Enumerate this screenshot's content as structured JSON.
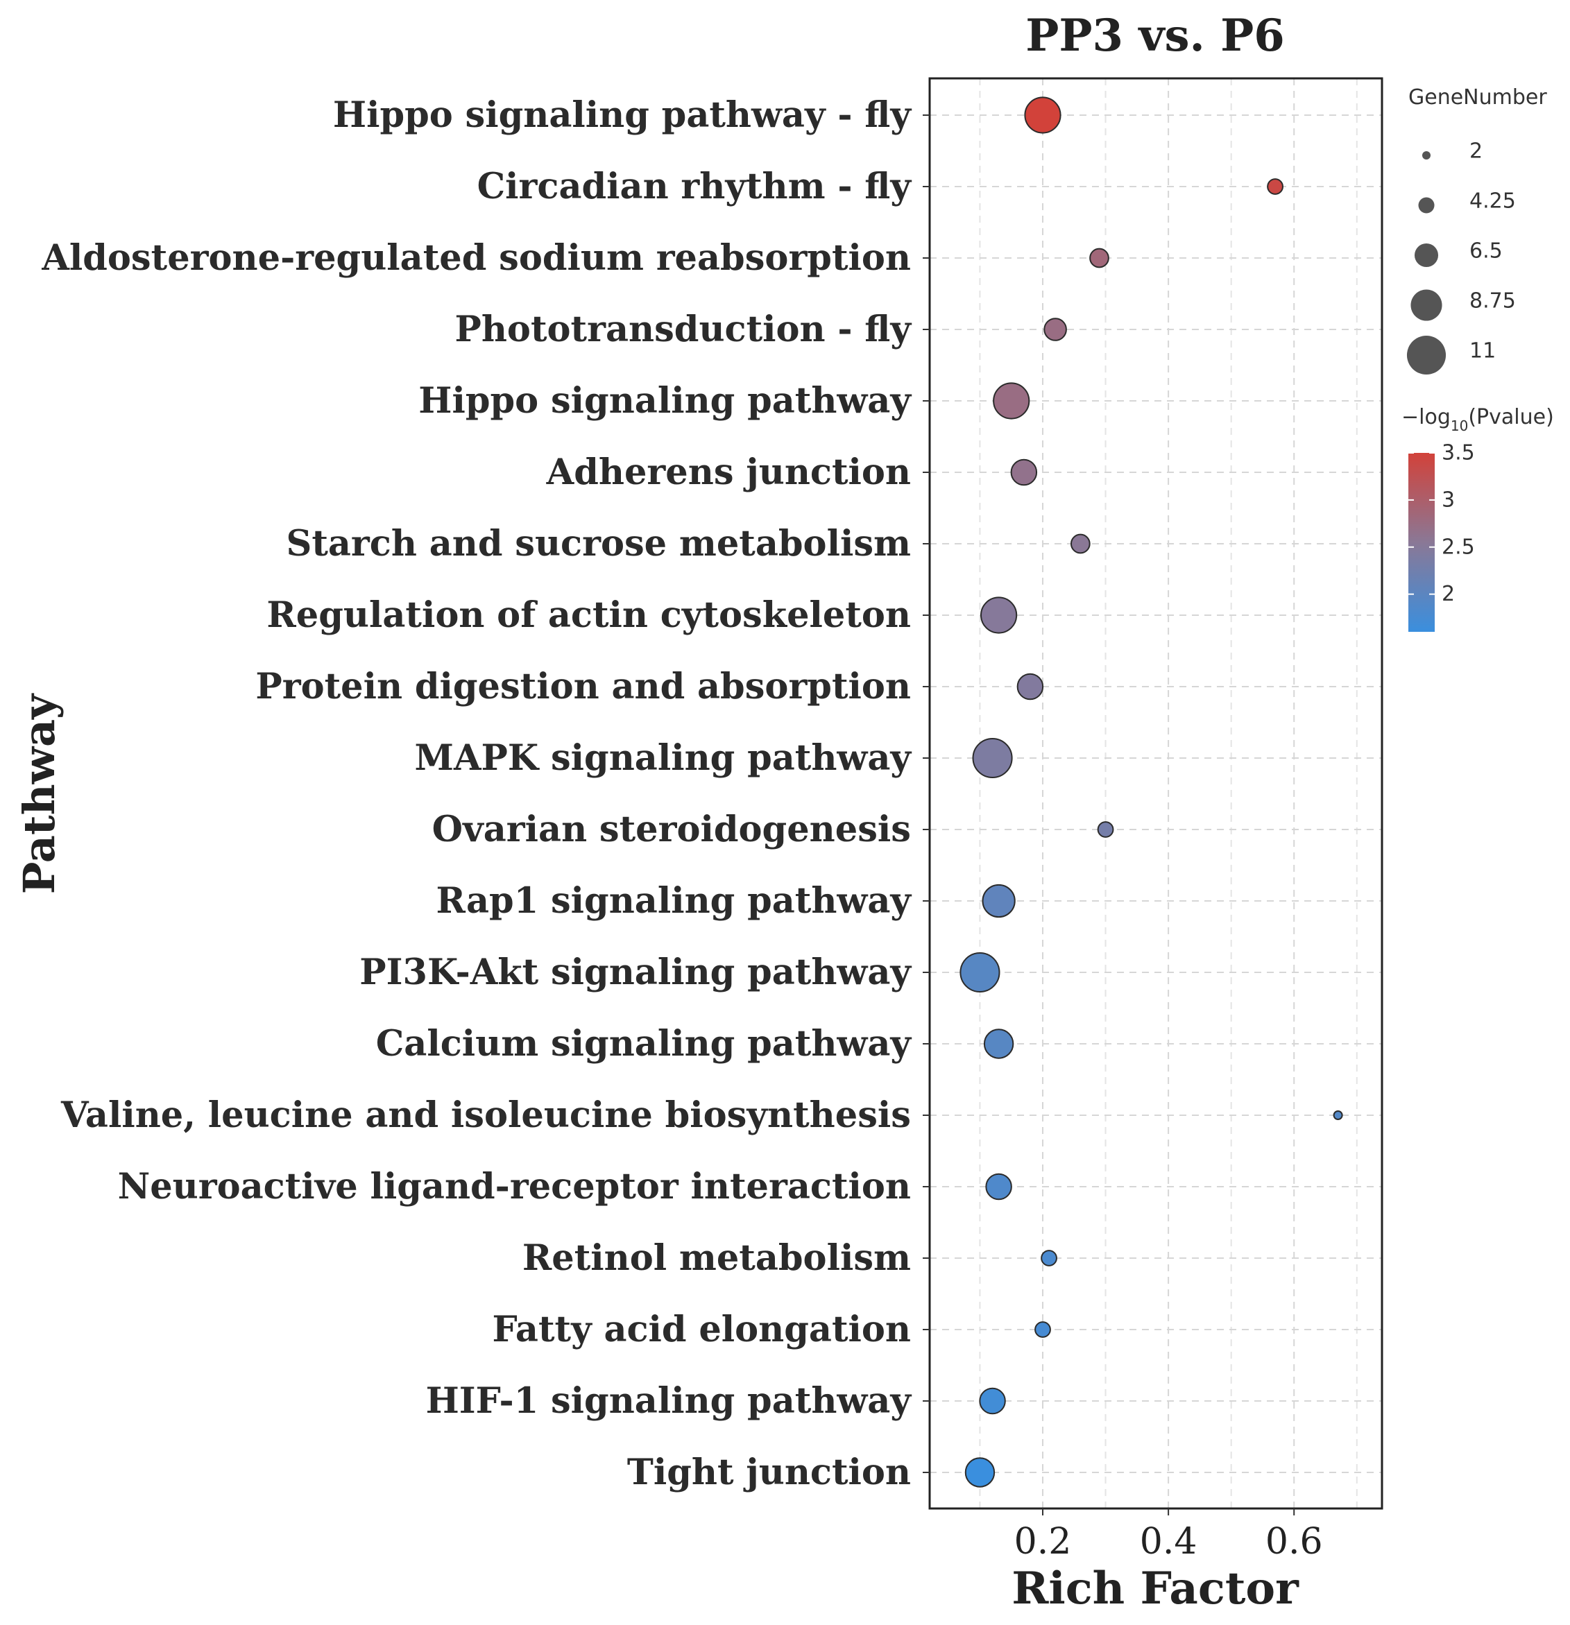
{
  "chart_data": {
    "type": "scatter",
    "title": "PP3 vs. P6",
    "xlabel": "Rich Factor",
    "ylabel": "Pathway",
    "xlim": [
      0.02,
      0.74
    ],
    "xticks": [
      0.2,
      0.4,
      0.6
    ],
    "xtick_labels": [
      "0.2",
      "0.4",
      "0.6"
    ],
    "grid": true,
    "points": [
      {
        "pathway": "Hippo signaling pathway - fly",
        "rich_factor": 0.2,
        "gene_number": 10,
        "neg_log10_p": 3.5
      },
      {
        "pathway": "Circadian rhythm - fly",
        "rich_factor": 0.57,
        "gene_number": 4,
        "neg_log10_p": 3.4
      },
      {
        "pathway": "Aldosterone-regulated sodium reabsorption",
        "rich_factor": 0.29,
        "gene_number": 5,
        "neg_log10_p": 2.85
      },
      {
        "pathway": "Phototransduction - fly",
        "rich_factor": 0.22,
        "gene_number": 6,
        "neg_log10_p": 2.75
      },
      {
        "pathway": "Hippo signaling pathway",
        "rich_factor": 0.15,
        "gene_number": 10,
        "neg_log10_p": 2.75
      },
      {
        "pathway": "Adherens junction",
        "rich_factor": 0.17,
        "gene_number": 7,
        "neg_log10_p": 2.65
      },
      {
        "pathway": "Starch and sucrose metabolism",
        "rich_factor": 0.26,
        "gene_number": 5,
        "neg_log10_p": 2.55
      },
      {
        "pathway": "Regulation of actin cytoskeleton",
        "rich_factor": 0.13,
        "gene_number": 10,
        "neg_log10_p": 2.5
      },
      {
        "pathway": "Protein digestion and absorption",
        "rich_factor": 0.18,
        "gene_number": 7,
        "neg_log10_p": 2.45
      },
      {
        "pathway": "MAPK signaling pathway",
        "rich_factor": 0.12,
        "gene_number": 11,
        "neg_log10_p": 2.4
      },
      {
        "pathway": "Ovarian steroidogenesis",
        "rich_factor": 0.3,
        "gene_number": 4,
        "neg_log10_p": 2.3
      },
      {
        "pathway": "Rap1 signaling pathway",
        "rich_factor": 0.13,
        "gene_number": 9,
        "neg_log10_p": 2.05
      },
      {
        "pathway": "PI3K-Akt signaling pathway",
        "rich_factor": 0.1,
        "gene_number": 11,
        "neg_log10_p": 1.95
      },
      {
        "pathway": "Calcium signaling pathway",
        "rich_factor": 0.13,
        "gene_number": 8,
        "neg_log10_p": 1.95
      },
      {
        "pathway": "Valine, leucine and isoleucine biosynthesis",
        "rich_factor": 0.67,
        "gene_number": 2,
        "neg_log10_p": 1.9
      },
      {
        "pathway": "Neuroactive ligand-receptor interaction",
        "rich_factor": 0.13,
        "gene_number": 7,
        "neg_log10_p": 1.85
      },
      {
        "pathway": "Retinol metabolism",
        "rich_factor": 0.21,
        "gene_number": 4,
        "neg_log10_p": 1.8
      },
      {
        "pathway": "Fatty acid elongation",
        "rich_factor": 0.2,
        "gene_number": 4,
        "neg_log10_p": 1.75
      },
      {
        "pathway": "HIF-1 signaling pathway",
        "rich_factor": 0.12,
        "gene_number": 7,
        "neg_log10_p": 1.7
      },
      {
        "pathway": "Tight junction",
        "rich_factor": 0.1,
        "gene_number": 8,
        "neg_log10_p": 1.6
      }
    ],
    "size_legend": {
      "title": "GeneNumber",
      "labels": [
        "2",
        "4.25",
        "6.5",
        "8.75",
        "11"
      ],
      "values": [
        2,
        4.25,
        6.5,
        8.75,
        11
      ]
    },
    "color_legend": {
      "title_prefix": "−log",
      "title_sub": "10",
      "title_suffix": "(Pvalue)",
      "labels": [
        "3.5",
        "3",
        "2.5",
        "2"
      ],
      "values": [
        3.5,
        3,
        2.5,
        2
      ],
      "range": [
        1.6,
        3.5
      ],
      "low_color": "#3a8fde",
      "mid_color": "#8a7896",
      "high_color": "#d2423a"
    }
  }
}
